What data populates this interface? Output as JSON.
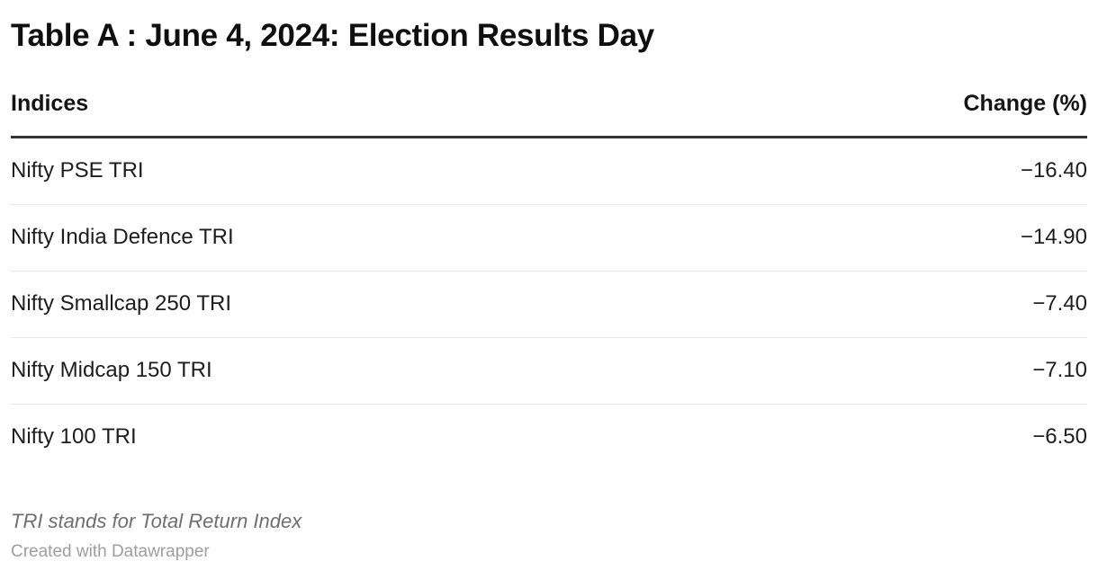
{
  "title": "Table A : June 4, 2024: Election Results Day",
  "table": {
    "header": {
      "indices": "Indices",
      "change": "Change (%)"
    },
    "rows": [
      {
        "name": "Nifty PSE TRI",
        "change": "−16.40"
      },
      {
        "name": "Nifty India Defence TRI",
        "change": "−14.90"
      },
      {
        "name": "Nifty Smallcap 250 TRI",
        "change": "−7.40"
      },
      {
        "name": "Nifty Midcap 150 TRI",
        "change": "−7.10"
      },
      {
        "name": "Nifty 100 TRI",
        "change": "−6.50"
      }
    ]
  },
  "footer": {
    "note": "TRI stands for Total Return Index",
    "attribution": "Created with Datawrapper"
  },
  "colors": {
    "title_text": "#0f0f0f",
    "row_text": "#1d1d1d",
    "header_border": "#333333",
    "row_separator": "#e8e8e8",
    "note_text": "#6f6f6f",
    "attribution_text": "#9e9e9e",
    "background": "#ffffff"
  },
  "chart_data": {
    "type": "table",
    "title": "Table A : June 4, 2024: Election Results Day",
    "columns": [
      "Indices",
      "Change (%)"
    ],
    "categories": [
      "Nifty PSE TRI",
      "Nifty India Defence TRI",
      "Nifty Smallcap 250 TRI",
      "Nifty Midcap 150 TRI",
      "Nifty 100 TRI"
    ],
    "values": [
      -16.4,
      -14.9,
      -7.4,
      -7.1,
      -6.5
    ],
    "value_unit": "%",
    "notes": "TRI stands for Total Return Index",
    "attribution": "Created with Datawrapper",
    "legend_position": "none",
    "grid": "row-separators"
  }
}
